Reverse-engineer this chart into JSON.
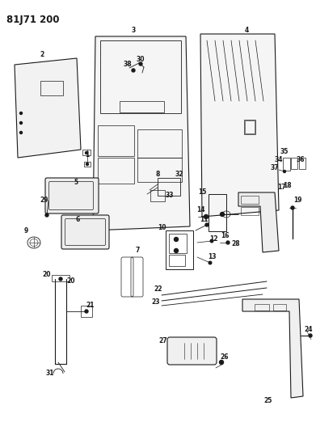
{
  "title": "81J71 200",
  "background_color": "#ffffff",
  "line_color": "#1a1a1a",
  "title_fontsize": 8.5,
  "label_fontsize": 5.5,
  "fig_width": 3.91,
  "fig_height": 5.33,
  "dpi": 100
}
